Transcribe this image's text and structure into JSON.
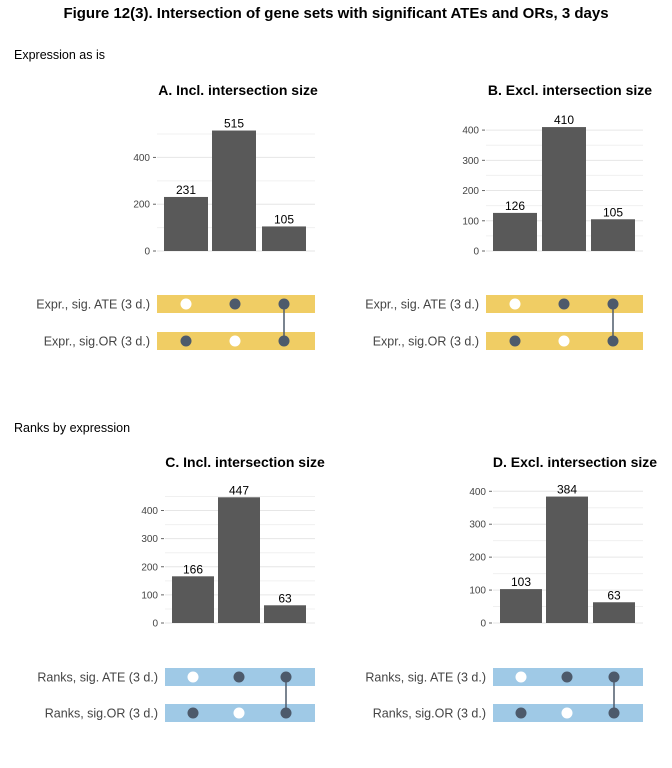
{
  "figure_title": "Figure 12(3). Intersection of gene sets with significant ATEs and ORs, 3 days",
  "sections": [
    {
      "title": "Expression as is"
    },
    {
      "title": "Ranks by expression"
    }
  ],
  "colors": {
    "bar": "#595959",
    "dot_on": "#4d5a6b",
    "dot_off": "#ffffff",
    "band_expression": "#f0cd64",
    "band_ranks": "#9fc9e6",
    "grid": "#e6e6e6"
  },
  "chart_data": [
    {
      "type": "bar",
      "title": "A. Incl. intersection size",
      "section": 0,
      "values": [
        231,
        515,
        105
      ],
      "ylim": [
        0,
        560
      ],
      "yticks": [
        0,
        200,
        400
      ],
      "ylabel": "",
      "xlabel": "",
      "sets": [
        "Expr., sig. ATE (3 d.)",
        "Expr., sig.OR (3 d.)"
      ],
      "membership": [
        [
          false,
          true
        ],
        [
          true,
          false
        ],
        [
          true,
          true
        ]
      ]
    },
    {
      "type": "bar",
      "title": "B. Excl. intersection size",
      "section": 0,
      "values": [
        126,
        410,
        105
      ],
      "ylim": [
        0,
        440
      ],
      "yticks": [
        0,
        100,
        200,
        300,
        400
      ],
      "ylabel": "",
      "xlabel": "",
      "sets": [
        "Expr., sig. ATE (3 d.)",
        "Expr., sig.OR (3 d.)"
      ],
      "membership": [
        [
          false,
          true
        ],
        [
          true,
          false
        ],
        [
          true,
          true
        ]
      ]
    },
    {
      "type": "bar",
      "title": "C. Incl. intersection size",
      "section": 1,
      "values": [
        166,
        447,
        63
      ],
      "ylim": [
        0,
        480
      ],
      "yticks": [
        0,
        100,
        200,
        300,
        400
      ],
      "ylabel": "",
      "xlabel": "",
      "sets": [
        "Ranks, sig. ATE (3 d.)",
        "Ranks, sig.OR (3 d.)"
      ],
      "membership": [
        [
          false,
          true
        ],
        [
          true,
          false
        ],
        [
          true,
          true
        ]
      ]
    },
    {
      "type": "bar",
      "title": "D. Excl. intersection size",
      "section": 1,
      "values": [
        103,
        384,
        63
      ],
      "ylim": [
        0,
        410
      ],
      "yticks": [
        0,
        100,
        200,
        300,
        400
      ],
      "ylabel": "",
      "xlabel": "",
      "sets": [
        "Ranks, sig. ATE (3 d.)",
        "Ranks, sig.OR (3 d.)"
      ],
      "membership": [
        [
          false,
          true
        ],
        [
          true,
          false
        ],
        [
          true,
          true
        ]
      ]
    }
  ]
}
